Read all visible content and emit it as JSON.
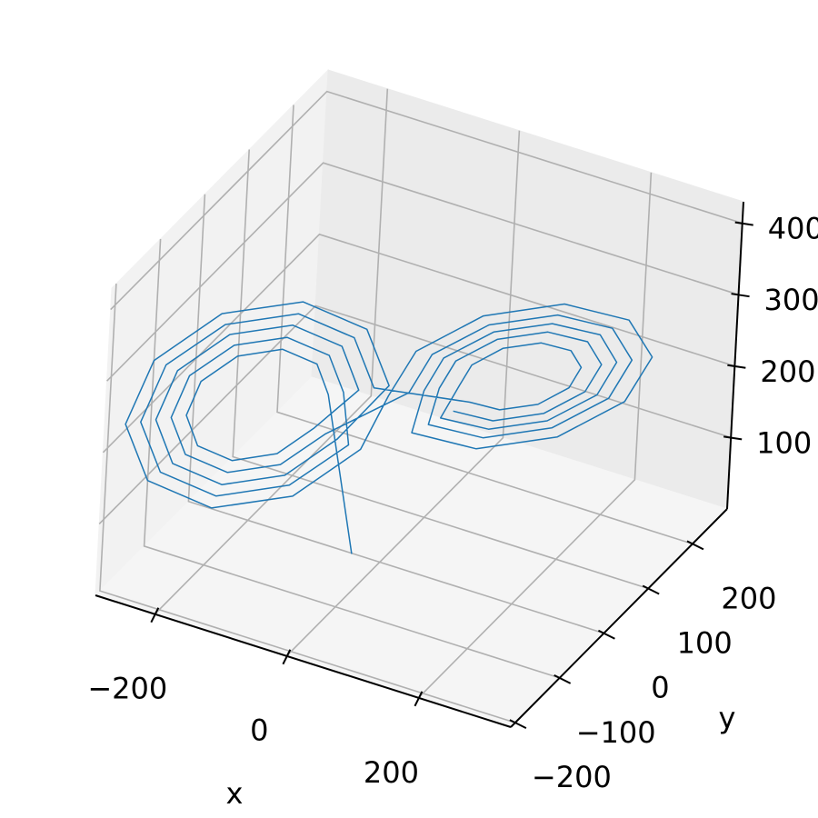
{
  "chart_data": {
    "type": "line3d",
    "color": "#1f77b4",
    "grid": true,
    "xlabel": "x",
    "ylabel": "y",
    "xlim": [
      -290,
      340
    ],
    "ylim": [
      -210,
      278
    ],
    "zlim": [
      0,
      430
    ],
    "xticks": [
      {
        "value": -200,
        "label": "−200"
      },
      0,
      200
    ],
    "yticks": [
      {
        "value": -200,
        "label": "−200"
      },
      {
        "value": -100,
        "label": "−100"
      },
      0,
      100,
      200
    ],
    "zticks": [
      100,
      200,
      300,
      400
    ],
    "x": [
      20,
      -50,
      -63,
      -98,
      -142,
      -177,
      -190,
      -177,
      -142,
      -98,
      -63,
      -20,
      -39,
      -89,
      -151,
      -201,
      -220,
      -201,
      -151,
      -89,
      -39,
      10,
      -15,
      -80,
      -160,
      -225,
      -250,
      -225,
      -160,
      -80,
      -15,
      -10,
      15,
      80,
      160,
      225,
      250,
      225,
      160,
      80,
      15,
      25,
      43,
      91,
      149,
      197,
      215,
      197,
      149,
      91,
      43,
      60,
      71,
      101,
      139,
      169,
      180,
      169,
      139,
      101,
      71,
      -5,
      -27,
      -84,
      -156,
      -213,
      -235,
      -213,
      -156,
      -84,
      -27,
      -35,
      -51,
      -94,
      -146,
      -189,
      -205,
      -189,
      -146,
      -94,
      -51,
      10,
      31,
      86,
      154,
      209,
      230,
      209,
      154,
      86,
      31,
      40,
      55,
      95,
      145,
      185,
      200,
      185,
      145,
      95,
      55
    ],
    "y": [
      -100,
      -64,
      -74,
      -102,
      -138,
      -166,
      -176,
      -166,
      -138,
      -102,
      -74,
      -40,
      -55,
      -95,
      -145,
      -185,
      -200,
      -185,
      -145,
      -95,
      -55,
      -16,
      -36,
      -88,
      -152,
      -204,
      -224,
      -204,
      -152,
      -88,
      -36,
      16,
      36,
      88,
      152,
      204,
      224,
      204,
      152,
      88,
      36,
      44,
      58,
      97,
      143,
      182,
      196,
      182,
      143,
      97,
      58,
      72,
      81,
      105,
      135,
      159,
      168,
      159,
      135,
      105,
      81,
      -28,
      -46,
      -91,
      -149,
      -194,
      -212,
      -194,
      -149,
      -91,
      -46,
      -52,
      -65,
      -99,
      -141,
      -175,
      -188,
      -175,
      -141,
      -99,
      -65,
      32,
      49,
      93,
      147,
      191,
      208,
      191,
      147,
      93,
      49,
      56,
      68,
      100,
      140,
      172,
      184,
      172,
      140,
      100,
      68
    ],
    "z": [
      80,
      260,
      305,
      333,
      333,
      305,
      260,
      215,
      187,
      187,
      215,
      260,
      325,
      365,
      365,
      325,
      260,
      195,
      155,
      155,
      195,
      260,
      344,
      396,
      396,
      344,
      260,
      176,
      124,
      124,
      176,
      220,
      277,
      313,
      313,
      277,
      220,
      163,
      127,
      127,
      163,
      220,
      262,
      288,
      288,
      262,
      220,
      178,
      152,
      152,
      178,
      220,
      246,
      263,
      263,
      246,
      220,
      194,
      177,
      177,
      194,
      260,
      335,
      380,
      380,
      335,
      260,
      185,
      140,
      140,
      185,
      260,
      315,
      349,
      349,
      315,
      260,
      205,
      171,
      171,
      205,
      220,
      269,
      299,
      299,
      269,
      220,
      171,
      141,
      141,
      171,
      220,
      255,
      277,
      277,
      255,
      220,
      185,
      163,
      163,
      185
    ]
  }
}
